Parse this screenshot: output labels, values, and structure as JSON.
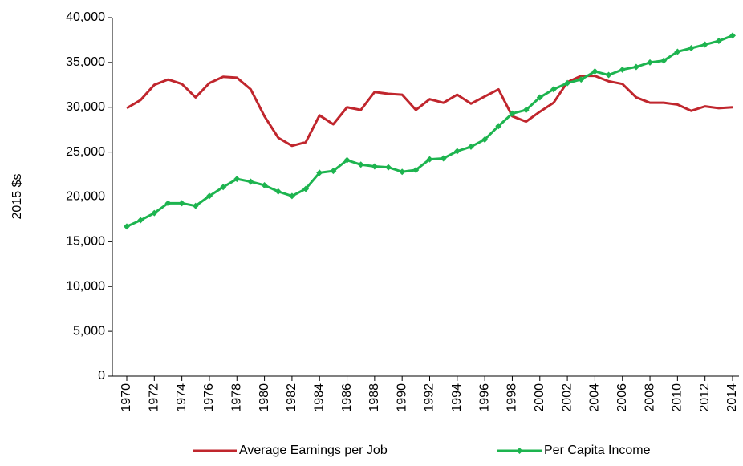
{
  "chart_data": {
    "type": "line",
    "y_label": "2015 $s",
    "x": [
      1970,
      1971,
      1972,
      1973,
      1974,
      1975,
      1976,
      1977,
      1978,
      1979,
      1980,
      1981,
      1982,
      1983,
      1984,
      1985,
      1986,
      1987,
      1988,
      1989,
      1990,
      1991,
      1992,
      1993,
      1994,
      1995,
      1996,
      1997,
      1998,
      1999,
      2000,
      2001,
      2002,
      2003,
      2004,
      2005,
      2006,
      2007,
      2008,
      2009,
      2010,
      2011,
      2012,
      2013,
      2014
    ],
    "xlim": [
      1970,
      2014
    ],
    "xticks": [
      1970,
      1972,
      1974,
      1976,
      1978,
      1980,
      1982,
      1984,
      1986,
      1988,
      1990,
      1992,
      1994,
      1996,
      1998,
      2000,
      2002,
      2004,
      2006,
      2008,
      2010,
      2012,
      2014
    ],
    "ylim": [
      0,
      40000
    ],
    "yticks": [
      0,
      {
        "value": 5000,
        "label": "5,000"
      },
      {
        "value": 10000,
        "label": "10,000"
      },
      {
        "value": 15000,
        "label": "15,000"
      },
      {
        "value": 20000,
        "label": "20,000"
      },
      {
        "value": 25000,
        "label": "25,000"
      },
      {
        "value": 30000,
        "label": "30,000"
      },
      {
        "value": 35000,
        "label": "35,000"
      },
      {
        "value": 40000,
        "label": "40,000"
      }
    ],
    "grid": false,
    "legend": "bottom",
    "series": [
      {
        "name": "Average Earnings per Job",
        "color": "#c0262d",
        "marker": "none",
        "values": [
          29900,
          30800,
          32500,
          33100,
          32600,
          31100,
          32700,
          33400,
          33300,
          32000,
          29000,
          26600,
          25700,
          26100,
          29100,
          28100,
          30000,
          29700,
          31700,
          31500,
          31400,
          29700,
          30900,
          30500,
          31400,
          30400,
          31200,
          32000,
          29000,
          28400,
          29500,
          30500,
          32800,
          33500,
          33500,
          32900,
          32600,
          31100,
          30500,
          30500,
          30300,
          29600,
          30100,
          29900,
          30000
        ]
      },
      {
        "name": "Per Capita Income",
        "color": "#1db44f",
        "marker": "diamond",
        "values": [
          16700,
          17400,
          18200,
          19300,
          19300,
          19000,
          20100,
          21100,
          22000,
          21700,
          21300,
          20600,
          20100,
          20900,
          22700,
          22900,
          24100,
          23600,
          23400,
          23300,
          22800,
          23000,
          24200,
          24300,
          25100,
          25600,
          26400,
          27900,
          29300,
          29700,
          31100,
          32000,
          32700,
          33100,
          34000,
          33600,
          34200,
          34500,
          35000,
          35200,
          36200,
          36600,
          37000,
          37400,
          38000
        ]
      }
    ]
  }
}
